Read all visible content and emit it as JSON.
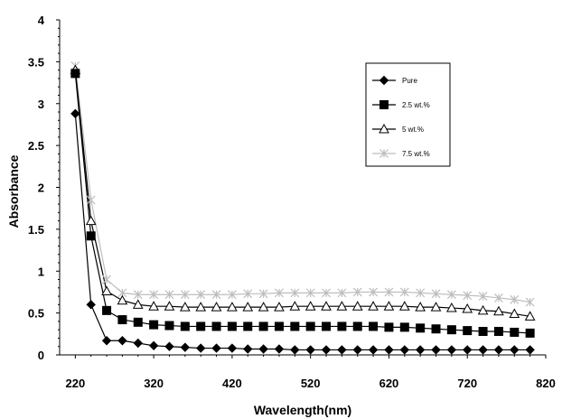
{
  "chart_data": {
    "type": "line",
    "title": "",
    "xlabel": "Wavelength(nm)",
    "ylabel": "Absorbance",
    "xlim": [
      200,
      820
    ],
    "ylim": [
      0,
      4
    ],
    "x_ticks": [
      "220",
      "320",
      "420",
      "520",
      "620",
      "720",
      "820"
    ],
    "y_ticks": [
      "0",
      "0.5",
      "1",
      "1.5",
      "2",
      "2.5",
      "3",
      "3.5",
      "4"
    ],
    "grid": false,
    "legend_position": "top-right",
    "x": [
      220,
      240,
      260,
      280,
      300,
      320,
      340,
      360,
      380,
      400,
      420,
      440,
      460,
      480,
      500,
      520,
      540,
      560,
      580,
      600,
      620,
      640,
      660,
      680,
      700,
      720,
      740,
      760,
      780,
      800
    ],
    "series": [
      {
        "name": "Pure",
        "marker": "diamond",
        "color": "#000000",
        "values": [
          2.88,
          0.6,
          0.17,
          0.17,
          0.14,
          0.11,
          0.1,
          0.09,
          0.08,
          0.08,
          0.08,
          0.07,
          0.07,
          0.07,
          0.06,
          0.06,
          0.06,
          0.06,
          0.06,
          0.06,
          0.06,
          0.06,
          0.06,
          0.06,
          0.06,
          0.06,
          0.06,
          0.06,
          0.06,
          0.06
        ]
      },
      {
        "name": "2.5 wt.%",
        "marker": "square",
        "color": "#000000",
        "values": [
          3.36,
          1.42,
          0.53,
          0.42,
          0.39,
          0.36,
          0.35,
          0.34,
          0.34,
          0.34,
          0.34,
          0.34,
          0.34,
          0.34,
          0.34,
          0.34,
          0.34,
          0.34,
          0.34,
          0.34,
          0.33,
          0.33,
          0.32,
          0.31,
          0.3,
          0.29,
          0.28,
          0.28,
          0.27,
          0.26
        ]
      },
      {
        "name": "5 wt.%",
        "marker": "triangle",
        "color": "#000000",
        "values": [
          3.4,
          1.6,
          0.76,
          0.65,
          0.6,
          0.58,
          0.58,
          0.57,
          0.57,
          0.57,
          0.57,
          0.57,
          0.57,
          0.57,
          0.58,
          0.58,
          0.58,
          0.58,
          0.58,
          0.58,
          0.58,
          0.58,
          0.57,
          0.57,
          0.56,
          0.55,
          0.53,
          0.52,
          0.49,
          0.46
        ]
      },
      {
        "name": "7.5 wt.%",
        "marker": "x",
        "color": "#bdbdbd",
        "values": [
          3.45,
          1.85,
          0.9,
          0.74,
          0.72,
          0.72,
          0.72,
          0.72,
          0.72,
          0.72,
          0.72,
          0.73,
          0.73,
          0.74,
          0.74,
          0.74,
          0.74,
          0.74,
          0.75,
          0.75,
          0.75,
          0.75,
          0.74,
          0.73,
          0.72,
          0.71,
          0.7,
          0.68,
          0.66,
          0.63
        ]
      }
    ]
  }
}
